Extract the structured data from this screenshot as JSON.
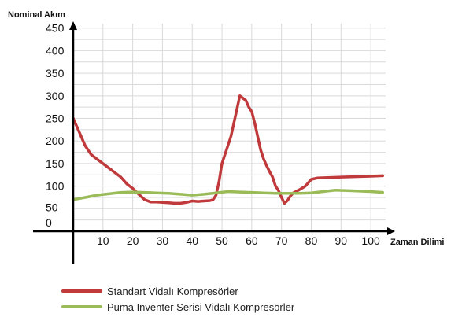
{
  "chart_data": {
    "type": "line",
    "xlabel": "Zaman Dilimi",
    "ylabel": "Nominal Akım",
    "x_ticks": [
      10,
      20,
      30,
      40,
      50,
      60,
      70,
      80,
      90,
      100
    ],
    "y_ticks": [
      0,
      50,
      100,
      150,
      200,
      250,
      300,
      350,
      400,
      450
    ],
    "xlim": [
      0,
      105
    ],
    "ylim": [
      0,
      460
    ],
    "grid": true,
    "legend_position": "bottom-left",
    "series": [
      {
        "name": "Standart Vidalı Kompresörler",
        "color": "#c0393b",
        "points": [
          [
            0,
            250
          ],
          [
            2,
            220
          ],
          [
            4,
            190
          ],
          [
            6,
            170
          ],
          [
            8,
            160
          ],
          [
            10,
            150
          ],
          [
            12,
            140
          ],
          [
            14,
            130
          ],
          [
            16,
            120
          ],
          [
            18,
            105
          ],
          [
            20,
            95
          ],
          [
            22,
            82
          ],
          [
            24,
            70
          ],
          [
            26,
            65
          ],
          [
            28,
            65
          ],
          [
            30,
            64
          ],
          [
            32,
            63
          ],
          [
            34,
            62
          ],
          [
            36,
            62
          ],
          [
            38,
            64
          ],
          [
            40,
            67
          ],
          [
            42,
            66
          ],
          [
            44,
            67
          ],
          [
            46,
            68
          ],
          [
            47,
            70
          ],
          [
            48,
            80
          ],
          [
            49,
            110
          ],
          [
            50,
            150
          ],
          [
            51,
            170
          ],
          [
            52,
            190
          ],
          [
            53,
            210
          ],
          [
            54,
            240
          ],
          [
            55,
            270
          ],
          [
            56,
            300
          ],
          [
            57,
            295
          ],
          [
            58,
            290
          ],
          [
            59,
            275
          ],
          [
            60,
            265
          ],
          [
            61,
            240
          ],
          [
            62,
            210
          ],
          [
            63,
            180
          ],
          [
            64,
            160
          ],
          [
            65,
            145
          ],
          [
            66,
            132
          ],
          [
            67,
            120
          ],
          [
            68,
            100
          ],
          [
            69,
            90
          ],
          [
            70,
            75
          ],
          [
            71,
            62
          ],
          [
            72,
            68
          ],
          [
            73,
            78
          ],
          [
            74,
            85
          ],
          [
            76,
            92
          ],
          [
            78,
            100
          ],
          [
            80,
            115
          ],
          [
            82,
            118
          ],
          [
            90,
            120
          ],
          [
            100,
            122
          ],
          [
            104,
            123
          ]
        ]
      },
      {
        "name": "Puma Inventer Serisi Vidalı Kompresörler",
        "color": "#9bbb59",
        "points": [
          [
            0,
            70
          ],
          [
            4,
            75
          ],
          [
            8,
            80
          ],
          [
            12,
            83
          ],
          [
            16,
            86
          ],
          [
            20,
            87
          ],
          [
            24,
            86
          ],
          [
            28,
            85
          ],
          [
            32,
            84
          ],
          [
            36,
            82
          ],
          [
            40,
            80
          ],
          [
            44,
            82
          ],
          [
            48,
            85
          ],
          [
            52,
            88
          ],
          [
            56,
            87
          ],
          [
            60,
            86
          ],
          [
            64,
            85
          ],
          [
            68,
            84
          ],
          [
            72,
            84
          ],
          [
            76,
            84
          ],
          [
            80,
            85
          ],
          [
            84,
            88
          ],
          [
            88,
            91
          ],
          [
            92,
            90
          ],
          [
            96,
            89
          ],
          [
            100,
            88
          ],
          [
            104,
            86
          ]
        ]
      }
    ]
  }
}
